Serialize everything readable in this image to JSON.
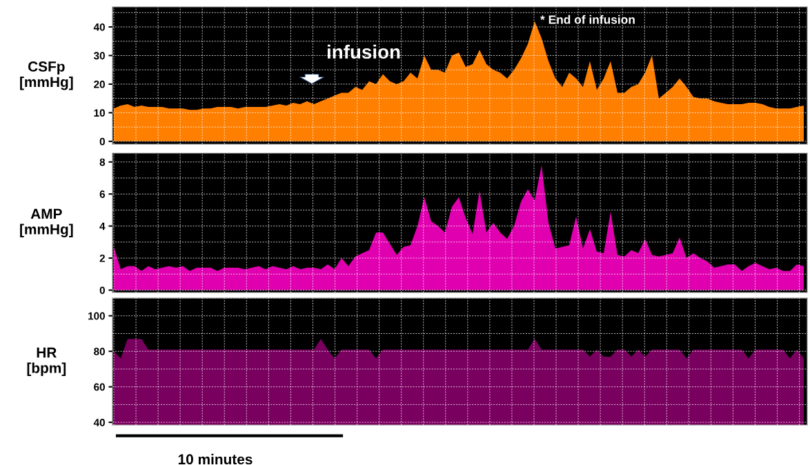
{
  "chart_data": [
    {
      "type": "area",
      "ylabel": "CSFp\n[mmHg]",
      "ylim": [
        -1,
        47
      ],
      "yticks": [
        0,
        10,
        20,
        30,
        40
      ],
      "grid": true,
      "tick_labels": "y",
      "color": "#ff7f00",
      "annotations": [
        "infusion",
        "* End of infusion"
      ],
      "categories": [
        null,
        null,
        null,
        null,
        null,
        null,
        null,
        null,
        null,
        null,
        null,
        null,
        null,
        null,
        null,
        null,
        null,
        null,
        null,
        null,
        null,
        null,
        null,
        null,
        null,
        null,
        null,
        null,
        null,
        null,
        null,
        null,
        null,
        null,
        null,
        null,
        null,
        null,
        null,
        null,
        null,
        null,
        null,
        null,
        null,
        null,
        null,
        null,
        null,
        null,
        null,
        null,
        null,
        null,
        null,
        null,
        null,
        null,
        null,
        null,
        null,
        null,
        null,
        null,
        null,
        null,
        null,
        null,
        null,
        null,
        null,
        null,
        null,
        null,
        null,
        null,
        null,
        null,
        null,
        null,
        null,
        null,
        null,
        null,
        null,
        null,
        null,
        null,
        null,
        null,
        null,
        null,
        null,
        null,
        null,
        null,
        null,
        null,
        null,
        null,
        null
      ],
      "values": [
        11.5,
        12.5,
        13,
        12,
        12.5,
        12,
        12,
        12,
        11.5,
        11.5,
        11.5,
        11,
        11,
        11.5,
        11.5,
        12,
        12,
        12,
        11.5,
        12,
        12,
        12,
        12,
        12.5,
        13,
        12.5,
        13.5,
        13,
        14,
        13,
        14,
        15,
        16,
        17,
        17,
        19,
        18,
        21,
        20,
        23.5,
        21,
        20,
        21,
        24,
        22,
        30,
        25,
        25,
        24,
        30,
        31,
        26,
        27,
        32,
        27,
        25,
        24,
        22,
        25,
        29,
        34,
        42,
        36,
        28,
        22,
        19,
        24,
        22,
        19,
        28,
        18,
        22,
        28,
        17,
        17,
        19,
        20,
        24,
        30,
        15,
        17,
        19,
        22,
        19,
        15.5,
        15,
        15,
        14,
        13.5,
        13,
        13,
        13,
        13.5,
        13.5,
        13,
        12,
        11.5,
        11.5,
        11.5,
        12,
        12.5
      ]
    },
    {
      "type": "area",
      "ylabel": "AMP\n[mmHg]",
      "ylim": [
        -0.15,
        8.55
      ],
      "yticks": [
        0,
        2,
        4,
        6,
        8
      ],
      "grid": true,
      "tick_labels": "y",
      "color": "#e000b0",
      "categories": [
        null,
        null,
        null,
        null,
        null,
        null,
        null,
        null,
        null,
        null,
        null,
        null,
        null,
        null,
        null,
        null,
        null,
        null,
        null,
        null,
        null,
        null,
        null,
        null,
        null,
        null,
        null,
        null,
        null,
        null,
        null,
        null,
        null,
        null,
        null,
        null,
        null,
        null,
        null,
        null,
        null,
        null,
        null,
        null,
        null,
        null,
        null,
        null,
        null,
        null,
        null,
        null,
        null,
        null,
        null,
        null,
        null,
        null,
        null,
        null,
        null,
        null,
        null,
        null,
        null,
        null,
        null,
        null,
        null,
        null,
        null,
        null,
        null,
        null,
        null,
        null,
        null,
        null,
        null,
        null,
        null,
        null,
        null,
        null,
        null,
        null,
        null,
        null,
        null,
        null,
        null,
        null,
        null,
        null,
        null,
        null,
        null,
        null,
        null,
        null,
        null
      ],
      "values": [
        2.7,
        1.3,
        1.5,
        1.5,
        1.2,
        1.5,
        1.3,
        1.4,
        1.5,
        1.4,
        1.5,
        1.2,
        1.4,
        1.4,
        1.4,
        1.2,
        1.4,
        1.4,
        1.4,
        1.3,
        1.4,
        1.5,
        1.3,
        1.5,
        1.4,
        1.3,
        1.5,
        1.3,
        1.4,
        1.4,
        1.3,
        1.6,
        1.3,
        2.0,
        1.5,
        2.1,
        2.3,
        2.5,
        3.6,
        3.6,
        2.9,
        2.2,
        2.7,
        2.8,
        4.0,
        5.8,
        4.3,
        4.0,
        3.6,
        5.2,
        5.8,
        4.5,
        3.5,
        6.2,
        3.6,
        4.2,
        3.6,
        3.2,
        4.0,
        5.5,
        6.3,
        5.6,
        7.8,
        4.2,
        2.6,
        2.7,
        2.8,
        4.6,
        2.6,
        3.8,
        2.4,
        2.3,
        4.9,
        2.2,
        2.1,
        2.5,
        2.3,
        3.2,
        2.2,
        2.1,
        2.2,
        2.3,
        3.3,
        2.0,
        2.3,
        2.0,
        1.8,
        1.4,
        1.5,
        1.6,
        1.6,
        1.2,
        1.5,
        1.7,
        1.5,
        1.3,
        1.4,
        1.2,
        1.2,
        1.6,
        1.5
      ]
    },
    {
      "type": "area",
      "ylabel": "HR\n[bpm]",
      "ylim": [
        38.5,
        110
      ],
      "yticks": [
        40,
        60,
        80,
        100
      ],
      "grid": true,
      "tick_labels": "y",
      "color": "#7a0060",
      "annotations": [
        "10 minutes"
      ],
      "categories": [
        null,
        null,
        null,
        null,
        null,
        null,
        null,
        null,
        null,
        null,
        null,
        null,
        null,
        null,
        null,
        null,
        null,
        null,
        null,
        null,
        null,
        null,
        null,
        null,
        null,
        null,
        null,
        null,
        null,
        null,
        null,
        null,
        null,
        null,
        null,
        null,
        null,
        null,
        null,
        null,
        null,
        null,
        null,
        null,
        null,
        null,
        null,
        null,
        null,
        null,
        null,
        null,
        null,
        null,
        null,
        null,
        null,
        null,
        null,
        null,
        null,
        null,
        null,
        null,
        null,
        null,
        null,
        null,
        null,
        null,
        null,
        null,
        null,
        null,
        null,
        null,
        null,
        null,
        null,
        null,
        null,
        null,
        null,
        null,
        null,
        null,
        null,
        null,
        null,
        null,
        null,
        null,
        null,
        null,
        null,
        null,
        null,
        null,
        null,
        null,
        null
      ],
      "values": [
        80,
        76,
        87,
        87,
        87,
        81,
        81,
        81,
        81,
        81,
        81,
        81,
        81,
        81,
        81,
        81,
        81,
        81,
        81,
        81,
        81,
        81,
        81,
        81,
        81,
        81,
        81,
        81,
        81,
        81,
        87,
        81,
        76,
        81,
        81,
        81,
        81,
        81,
        76,
        81,
        81,
        81,
        81,
        81,
        81,
        81,
        81,
        81,
        81,
        81,
        81,
        81,
        81,
        81,
        81,
        81,
        81,
        81,
        81,
        81,
        81,
        87,
        81,
        81,
        81,
        81,
        81,
        81,
        81,
        77,
        81,
        77,
        77,
        81,
        81,
        77,
        81,
        77,
        81,
        81,
        81,
        81,
        81,
        76,
        81,
        81,
        81,
        81,
        81,
        81,
        81,
        81,
        76,
        81,
        81,
        81,
        81,
        81,
        76,
        81,
        76
      ]
    }
  ]
}
